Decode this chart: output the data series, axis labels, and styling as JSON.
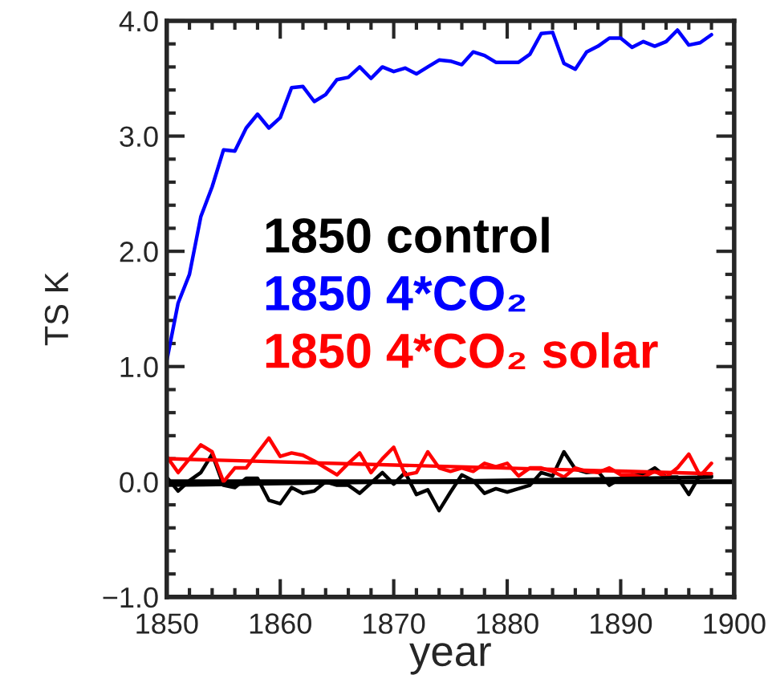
{
  "chart_data": {
    "type": "line",
    "xlabel": "year",
    "ylabel": "TS K",
    "xlim": [
      1850,
      1900
    ],
    "xticks": [
      1850,
      1860,
      1870,
      1880,
      1890,
      1900
    ],
    "ylim": [
      -1.0,
      4.0
    ],
    "yticks": [
      {
        "value": -1.0,
        "label": "−1.0"
      },
      {
        "value": 0.0,
        "label": "0.0"
      },
      {
        "value": 1.0,
        "label": "1.0"
      },
      {
        "value": 2.0,
        "label": "2.0"
      },
      {
        "value": 3.0,
        "label": "3.0"
      },
      {
        "value": 4.0,
        "label": "4.0"
      }
    ],
    "grid": false,
    "legend": "right",
    "marker": "none",
    "line_style": "solid",
    "ref_lines": [
      {
        "axis": "y",
        "value": 0,
        "color": "#000000"
      }
    ],
    "series": [
      {
        "name": "1850 control",
        "color": "#000000",
        "x": [
          1850,
          1851,
          1852,
          1853,
          1854,
          1855,
          1856,
          1857,
          1858,
          1859,
          1860,
          1861,
          1862,
          1863,
          1864,
          1865,
          1866,
          1867,
          1868,
          1869,
          1870,
          1871,
          1872,
          1873,
          1874,
          1875,
          1876,
          1877,
          1878,
          1879,
          1880,
          1881,
          1882,
          1883,
          1884,
          1885,
          1886,
          1887,
          1888,
          1889,
          1890,
          1891,
          1892,
          1893,
          1894,
          1895,
          1896,
          1897,
          1898
        ],
        "values": [
          0.04,
          -0.08,
          0.01,
          0.08,
          0.24,
          -0.03,
          -0.05,
          0.03,
          0.03,
          -0.16,
          -0.19,
          -0.05,
          -0.1,
          -0.08,
          0.0,
          -0.03,
          -0.03,
          -0.1,
          -0.01,
          0.08,
          -0.02,
          0.08,
          -0.11,
          -0.07,
          -0.25,
          -0.09,
          0.06,
          0.01,
          -0.1,
          -0.06,
          -0.09,
          -0.06,
          -0.03,
          0.08,
          0.05,
          0.26,
          0.11,
          0.08,
          0.09,
          -0.03,
          0.03,
          0.06,
          0.06,
          0.12,
          0.04,
          0.04,
          -0.11,
          0.06,
          0.05
        ]
      },
      {
        "name": "1850 4*CO₂",
        "color": "#0000ff",
        "x": [
          1850,
          1851,
          1852,
          1853,
          1854,
          1855,
          1856,
          1857,
          1858,
          1859,
          1860,
          1861,
          1862,
          1863,
          1864,
          1865,
          1866,
          1867,
          1868,
          1869,
          1870,
          1871,
          1872,
          1873,
          1874,
          1875,
          1876,
          1877,
          1878,
          1879,
          1880,
          1881,
          1882,
          1883,
          1884,
          1885,
          1886,
          1887,
          1888,
          1889,
          1890,
          1891,
          1892,
          1893,
          1894,
          1895,
          1896,
          1897,
          1898
        ],
        "values": [
          1.05,
          1.55,
          1.8,
          2.3,
          2.56,
          2.88,
          2.87,
          3.07,
          3.19,
          3.07,
          3.16,
          3.42,
          3.43,
          3.3,
          3.36,
          3.49,
          3.51,
          3.6,
          3.5,
          3.6,
          3.56,
          3.59,
          3.54,
          3.6,
          3.66,
          3.65,
          3.62,
          3.73,
          3.7,
          3.64,
          3.64,
          3.64,
          3.71,
          3.89,
          3.9,
          3.63,
          3.58,
          3.73,
          3.78,
          3.85,
          3.85,
          3.77,
          3.82,
          3.78,
          3.82,
          3.92,
          3.79,
          3.81,
          3.88
        ]
      },
      {
        "name": "1850 4*CO₂ solar",
        "color": "#ff0000",
        "x": [
          1850,
          1851,
          1852,
          1853,
          1854,
          1855,
          1856,
          1857,
          1858,
          1859,
          1860,
          1861,
          1862,
          1863,
          1864,
          1865,
          1866,
          1867,
          1868,
          1869,
          1870,
          1871,
          1872,
          1873,
          1874,
          1875,
          1876,
          1877,
          1878,
          1879,
          1880,
          1881,
          1882,
          1883,
          1884,
          1885,
          1886,
          1887,
          1888,
          1889,
          1890,
          1891,
          1892,
          1893,
          1894,
          1895,
          1896,
          1897,
          1898
        ],
        "values": [
          0.22,
          0.08,
          0.2,
          0.32,
          0.26,
          0.0,
          0.12,
          0.12,
          0.25,
          0.38,
          0.22,
          0.25,
          0.23,
          0.18,
          0.12,
          0.06,
          0.16,
          0.25,
          0.08,
          0.2,
          0.3,
          0.06,
          0.08,
          0.26,
          0.12,
          0.09,
          0.12,
          0.09,
          0.16,
          0.13,
          0.16,
          0.05,
          0.12,
          0.12,
          0.09,
          0.04,
          0.12,
          0.09,
          0.08,
          0.12,
          0.06,
          0.06,
          0.04,
          0.09,
          0.04,
          0.12,
          0.24,
          0.05,
          0.16
        ]
      },
      {
        "color": "#000000",
        "x": [
          1850,
          1898
        ],
        "values": [
          -0.03,
          0.04
        ]
      },
      {
        "color": "#ff0000",
        "x": [
          1850,
          1898
        ],
        "values": [
          0.2,
          0.07
        ]
      }
    ]
  }
}
